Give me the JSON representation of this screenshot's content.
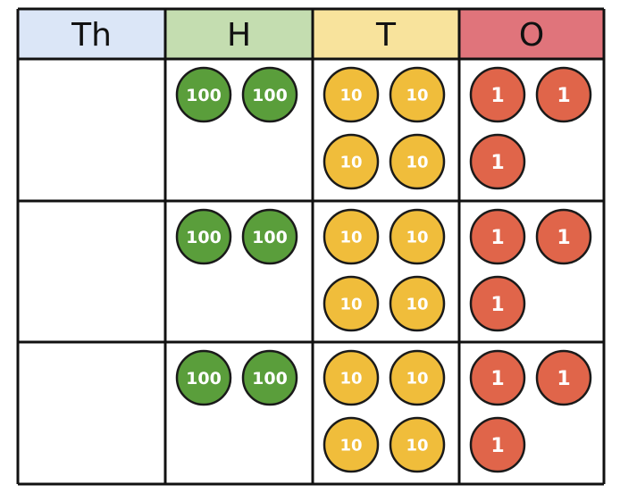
{
  "columns": [
    {
      "key": "th",
      "label": "Th",
      "color": "#dbe6f7"
    },
    {
      "key": "h",
      "label": "H",
      "color": "#c4ddb0"
    },
    {
      "key": "t",
      "label": "T",
      "color": "#f8e39c"
    },
    {
      "key": "o",
      "label": "O",
      "color": "#e0747b"
    }
  ],
  "counters": {
    "hundred": {
      "label": "100",
      "color": "#5a9e3b"
    },
    "ten": {
      "label": "10",
      "color": "#f0bd3b"
    },
    "one": {
      "label": "1",
      "color": "#e0654a"
    }
  },
  "rows": [
    {
      "th": 0,
      "h": 2,
      "t": 4,
      "o": 3
    },
    {
      "th": 0,
      "h": 2,
      "t": 4,
      "o": 3
    },
    {
      "th": 0,
      "h": 2,
      "t": 4,
      "o": 3
    }
  ]
}
